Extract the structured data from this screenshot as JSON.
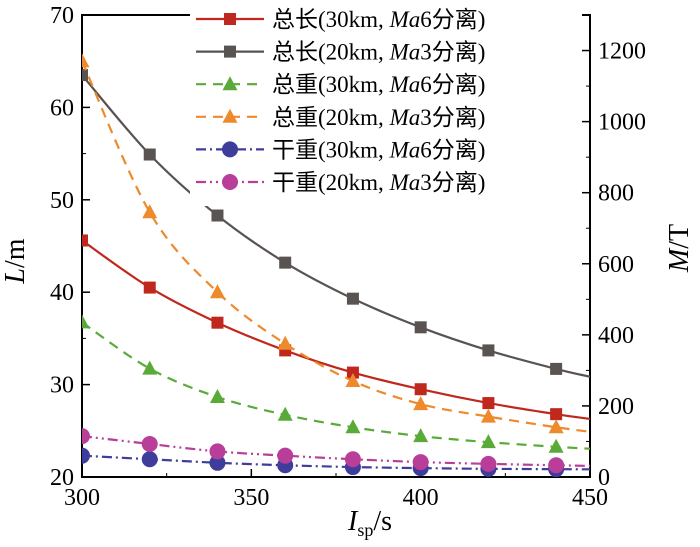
{
  "chart_data": {
    "type": "line",
    "x": [
      300,
      320,
      340,
      360,
      380,
      400,
      420,
      440
    ],
    "xlim": [
      300,
      450
    ],
    "ylim_left": [
      20,
      70
    ],
    "ylim_right": [
      0,
      1300
    ],
    "xticks": [
      "300",
      "350",
      "400",
      "450"
    ],
    "yticks_left": [
      "20",
      "30",
      "40",
      "50",
      "60",
      "70"
    ],
    "yticks_right": [
      "0",
      "200",
      "400",
      "600",
      "800",
      "1000",
      "1200"
    ],
    "xlabel": {
      "main": "I",
      "sub": "sp",
      "unit": "/s"
    },
    "ylabel_left": {
      "main": "L",
      "unit": "/m"
    },
    "ylabel_right": {
      "main": "M",
      "unit": "/T"
    },
    "legend_position": "top-right",
    "series": [
      {
        "name": "总长(30km, Ma6分离)",
        "label_prefix": "总长(30km, ",
        "label_ma": "Ma",
        "label_suffix": "6分离)",
        "axis": "left",
        "color": "#c0271d",
        "dash": "",
        "marker": "square",
        "values": [
          45.6,
          40.5,
          36.7,
          33.7,
          31.3,
          29.5,
          28.0,
          26.8
        ]
      },
      {
        "name": "总长(20km, Ma3分离)",
        "label_prefix": "总长(20km, ",
        "label_ma": "Ma",
        "label_suffix": "3分离)",
        "axis": "left",
        "color": "#595352",
        "dash": "",
        "marker": "square",
        "values": [
          63.5,
          54.9,
          48.3,
          43.2,
          39.3,
          36.2,
          33.7,
          31.7
        ]
      },
      {
        "name": "总重(30km, Ma6分离)",
        "label_prefix": "总重(30km, ",
        "label_ma": "Ma",
        "label_suffix": "6分离)",
        "axis": "right",
        "color": "#5aaa3a",
        "dash": "10,7",
        "marker": "triangle",
        "values": [
          435,
          305,
          225,
          175,
          140,
          115,
          98,
          85
        ]
      },
      {
        "name": "总重(20km, Ma3分离)",
        "label_prefix": "总重(20km, ",
        "label_ma": "Ma",
        "label_suffix": "3分离)",
        "axis": "right",
        "color": "#ee8a2c",
        "dash": "10,7",
        "marker": "triangle",
        "values": [
          1170,
          745,
          520,
          375,
          270,
          205,
          170,
          140
        ]
      },
      {
        "name": "干重(30km, Ma6分离)",
        "label_prefix": "干重(30km, ",
        "label_ma": "Ma",
        "label_suffix": "6分离)",
        "axis": "right",
        "color": "#3f3d9c",
        "dash": "10,4,2,4",
        "marker": "circle",
        "values": [
          60,
          50,
          40,
          33,
          28,
          25,
          23,
          22
        ]
      },
      {
        "name": "干重(20km, Ma3分离)",
        "label_prefix": "干重(20km, ",
        "label_ma": "Ma",
        "label_suffix": "3分离)",
        "axis": "right",
        "color": "#b83e99",
        "dash": "10,4,2,4,2,4",
        "marker": "circle",
        "values": [
          115,
          93,
          72,
          60,
          50,
          42,
          37,
          33
        ]
      }
    ]
  }
}
